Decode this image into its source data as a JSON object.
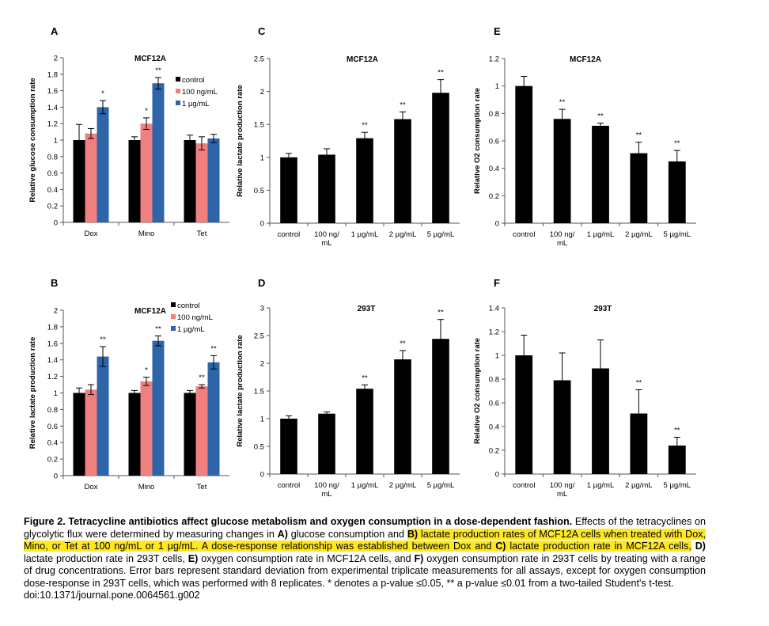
{
  "chart_data": [
    {
      "panel": "A",
      "type": "bar",
      "title": "MCF12A",
      "ylabel": "Relative glucose consumption rate",
      "xlabel": "",
      "ylim": [
        0,
        2
      ],
      "yticks": [
        "0",
        "0.2",
        "0.4",
        "0.6",
        "0.8",
        "1",
        "1.2",
        "1.4",
        "1.6",
        "1.8",
        "2"
      ],
      "categories": [
        "Dox",
        "Mino",
        "Tet"
      ],
      "legend": "top-right",
      "series": [
        {
          "name": "control",
          "color": "#000000",
          "values": [
            1.0,
            1.0,
            1.0
          ],
          "errors": [
            0.19,
            0.04,
            0.06
          ],
          "sig": [
            "",
            "",
            ""
          ]
        },
        {
          "name": "100 ng/mL",
          "color": "#f08080",
          "values": [
            1.08,
            1.2,
            0.96
          ],
          "errors": [
            0.06,
            0.07,
            0.08
          ],
          "sig": [
            "",
            "*",
            ""
          ]
        },
        {
          "name": "1 µg/mL",
          "color": "#2e64a8",
          "values": [
            1.4,
            1.69,
            1.02
          ],
          "errors": [
            0.08,
            0.07,
            0.05
          ],
          "sig": [
            "*",
            "**",
            ""
          ]
        }
      ]
    },
    {
      "panel": "B",
      "type": "bar",
      "title": "MCF12A",
      "ylabel": "Relative lactate production rate",
      "xlabel": "",
      "ylim": [
        0,
        2
      ],
      "yticks": [
        "0",
        "0.2",
        "0.4",
        "0.6",
        "0.8",
        "1",
        "1.2",
        "1.4",
        "1.6",
        "1.8",
        "2"
      ],
      "categories": [
        "Dox",
        "Mino",
        "Tet"
      ],
      "legend": "top-right",
      "series": [
        {
          "name": "control",
          "color": "#000000",
          "values": [
            1.0,
            1.0,
            1.0
          ],
          "errors": [
            0.06,
            0.03,
            0.03
          ],
          "sig": [
            "",
            "",
            ""
          ]
        },
        {
          "name": "100 ng/mL",
          "color": "#f08080",
          "values": [
            1.04,
            1.14,
            1.08
          ],
          "errors": [
            0.06,
            0.05,
            0.02
          ],
          "sig": [
            "",
            "*",
            "**"
          ]
        },
        {
          "name": "1 µg/mL",
          "color": "#2e64a8",
          "values": [
            1.44,
            1.63,
            1.37
          ],
          "errors": [
            0.12,
            0.06,
            0.08
          ],
          "sig": [
            "**",
            "**",
            "**"
          ]
        }
      ]
    },
    {
      "panel": "C",
      "type": "bar",
      "title": "MCF12A",
      "ylabel": "Relative lactate production rate",
      "xlabel": "",
      "ylim": [
        0,
        2.5
      ],
      "yticks": [
        "0",
        "0.5",
        "1",
        "1.5",
        "2",
        "2.5"
      ],
      "categories": [
        "control",
        "100 ng/\nmL",
        "1 µg/mL",
        "2 µg/mL",
        "5 µg/mL"
      ],
      "series": [
        {
          "name": "",
          "color": "#000000",
          "values": [
            1.0,
            1.04,
            1.29,
            1.58,
            1.98
          ],
          "errors": [
            0.06,
            0.09,
            0.09,
            0.11,
            0.2
          ],
          "sig": [
            "",
            "",
            "**",
            "**",
            "**"
          ]
        }
      ]
    },
    {
      "panel": "D",
      "type": "bar",
      "title": "293T",
      "ylabel": "Relative lactate production rate",
      "xlabel": "",
      "ylim": [
        0,
        3
      ],
      "yticks": [
        "0",
        "0.5",
        "1",
        "1.5",
        "2",
        "2.5",
        "3"
      ],
      "categories": [
        "control",
        "100 ng/\nmL",
        "1 µg/mL",
        "2 µg/mL",
        "5 µg/mL"
      ],
      "series": [
        {
          "name": "",
          "color": "#000000",
          "values": [
            1.0,
            1.09,
            1.54,
            2.07,
            2.44
          ],
          "errors": [
            0.05,
            0.03,
            0.07,
            0.16,
            0.35
          ],
          "sig": [
            "",
            "",
            "**",
            "**",
            "**"
          ]
        }
      ]
    },
    {
      "panel": "E",
      "type": "bar",
      "title": "MCF12A",
      "ylabel": "Relative O2 consumption rate",
      "xlabel": "",
      "ylim": [
        0,
        1.2
      ],
      "yticks": [
        "0",
        "0.2",
        "0.4",
        "0.6",
        "0.8",
        "1",
        "1.2"
      ],
      "categories": [
        "control",
        "100 ng/\nmL",
        "1 µg/mL",
        "2 µg/mL",
        "5 µg/mL"
      ],
      "series": [
        {
          "name": "",
          "color": "#000000",
          "values": [
            1.0,
            0.76,
            0.71,
            0.51,
            0.45
          ],
          "errors": [
            0.07,
            0.07,
            0.02,
            0.08,
            0.08
          ],
          "sig": [
            "",
            "**",
            "**",
            "**",
            "**"
          ]
        }
      ]
    },
    {
      "panel": "F",
      "type": "bar",
      "title": "293T",
      "ylabel": "Relative O2 consumption rate",
      "xlabel": "",
      "ylim": [
        0,
        1.4
      ],
      "yticks": [
        "0",
        "0.2",
        "0.4",
        "0.6",
        "0.8",
        "1",
        "1.2",
        "1.4"
      ],
      "categories": [
        "control",
        "100 ng/\nmL",
        "1 µg/mL",
        "2 µg/mL",
        "5 µg/mL"
      ],
      "series": [
        {
          "name": "",
          "color": "#000000",
          "values": [
            1.0,
            0.79,
            0.89,
            0.51,
            0.24
          ],
          "errors": [
            0.17,
            0.23,
            0.24,
            0.2,
            0.07
          ],
          "sig": [
            "",
            "",
            "",
            "**",
            "**"
          ]
        }
      ]
    }
  ],
  "caption": {
    "figure_label": "Figure 2. Tetracycline antibiotics affect glucose metabolism and oxygen consumption in a dose-dependent fashion.",
    "t1": " Effects of the tetracyclines on glycolytic flux were determined by measuring changes in ",
    "A": "A)",
    "t2": " glucose consumption and ",
    "hl_B": "B)",
    "hl_t3": " lactate production rates of MCF12A cells when treated with Dox, Mino, or Tet at 100 ng/mL or 1 µg/mL. A dose-response relationship was established between Dox and ",
    "hl_C": "C)",
    "hl_t4": " lactate production rate in MCF12A cells,",
    "D": " D)",
    "t5": " lactate production rate in 293T cells, ",
    "E": "E)",
    "t6": " oxygen consumption rate in MCF12A cells, and ",
    "F": "F)",
    "t7": " oxygen consumption rate in 293T cells by treating with a range of drug concentrations. Error bars represent standard deviation from experimental triplicate measurements for all assays, except for oxygen consumption dose-response in 293T cells, which was performed with 8 replicates. * denotes a p-value ≤0.05, ** a p-value ≤0.01 from a two-tailed Student's t-test.",
    "doi": "doi:10.1371/journal.pone.0064561.g002"
  }
}
